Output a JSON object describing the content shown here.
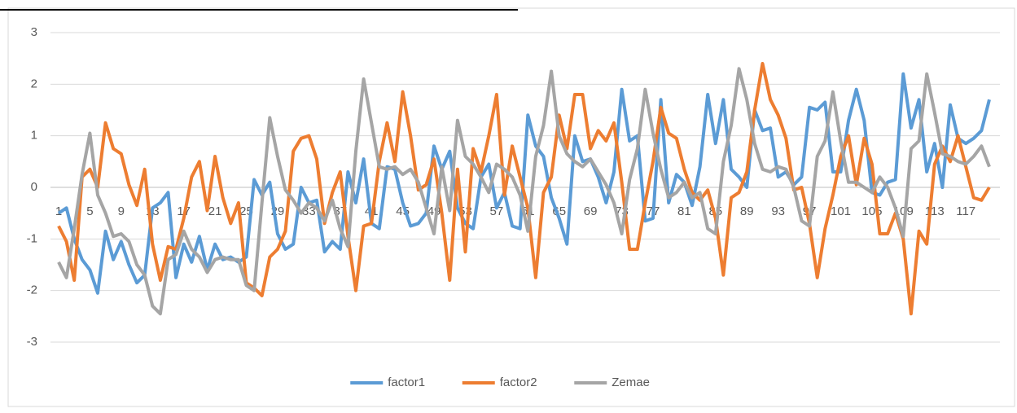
{
  "chart_data": {
    "type": "line",
    "categories": [
      "1",
      null,
      null,
      null,
      "5",
      null,
      null,
      null,
      "9",
      null,
      null,
      null,
      "13",
      null,
      null,
      null,
      "17",
      null,
      null,
      null,
      "21",
      null,
      null,
      null,
      "25",
      null,
      null,
      null,
      "29",
      null,
      null,
      null,
      "33",
      null,
      null,
      null,
      "37",
      null,
      null,
      null,
      "41",
      null,
      null,
      null,
      "45",
      null,
      null,
      null,
      "49",
      null,
      null,
      null,
      "53",
      null,
      null,
      null,
      "57",
      null,
      null,
      null,
      "61",
      null,
      null,
      null,
      "65",
      null,
      null,
      null,
      "69",
      null,
      null,
      null,
      "73",
      null,
      null,
      null,
      "77",
      null,
      null,
      null,
      "81",
      null,
      null,
      null,
      "85",
      null,
      null,
      null,
      "89",
      null,
      null,
      null,
      "93",
      null,
      null,
      null,
      "97",
      null,
      null,
      null,
      "101",
      null,
      null,
      null,
      "105",
      null,
      null,
      null,
      "109",
      null,
      null,
      null,
      "113",
      null,
      null,
      null,
      "117",
      null,
      null,
      null
    ],
    "series": [
      {
        "name": "factor1",
        "color": "#5b9bd5",
        "values": [
          -0.5,
          -0.4,
          -1.0,
          -1.4,
          -1.6,
          -2.05,
          -0.85,
          -1.4,
          -1.05,
          -1.5,
          -1.85,
          -1.7,
          -0.4,
          -0.3,
          -0.1,
          -1.75,
          -1.1,
          -1.45,
          -0.95,
          -1.6,
          -1.1,
          -1.4,
          -1.35,
          -1.45,
          -1.35,
          0.15,
          -0.15,
          0.1,
          -0.9,
          -1.2,
          -1.1,
          0.0,
          -0.3,
          -0.25,
          -1.25,
          -1.05,
          -1.2,
          0.3,
          -0.3,
          0.55,
          -0.7,
          -0.8,
          0.4,
          0.35,
          -0.3,
          -0.75,
          -0.7,
          -0.5,
          0.8,
          0.35,
          0.7,
          -0.4,
          -0.7,
          -0.8,
          0.2,
          0.45,
          -0.4,
          -0.1,
          -0.75,
          -0.8,
          1.4,
          0.8,
          0.6,
          -0.2,
          -0.6,
          -1.1,
          1.0,
          0.5,
          0.55,
          0.2,
          -0.3,
          0.3,
          1.9,
          0.9,
          1.0,
          -0.65,
          -0.6,
          1.7,
          -0.3,
          0.25,
          0.1,
          -0.35,
          0.4,
          1.8,
          0.85,
          1.7,
          0.35,
          0.2,
          0.0,
          1.5,
          1.1,
          1.15,
          0.2,
          0.3,
          0.05,
          0.2,
          1.55,
          1.5,
          1.65,
          0.3,
          0.3,
          1.3,
          1.9,
          1.3,
          -0.1,
          -0.15,
          0.1,
          0.15,
          2.2,
          1.15,
          1.7,
          0.3,
          0.85,
          0.0,
          1.6,
          0.95,
          0.85,
          0.95,
          1.1,
          1.7
        ]
      },
      {
        "name": "factor2",
        "color": "#ed7d31",
        "values": [
          -0.75,
          -1.05,
          -1.8,
          0.2,
          0.35,
          0.0,
          1.25,
          0.75,
          0.65,
          0.05,
          -0.35,
          0.35,
          -1.1,
          -1.8,
          -1.15,
          -1.2,
          -0.6,
          0.2,
          0.5,
          -0.45,
          0.6,
          -0.2,
          -0.7,
          -0.3,
          -1.85,
          -1.95,
          -2.1,
          -1.35,
          -1.2,
          -0.85,
          0.7,
          0.95,
          1.0,
          0.55,
          -0.7,
          -0.1,
          0.3,
          -0.95,
          -2.0,
          -0.75,
          -0.7,
          0.5,
          1.25,
          0.5,
          1.85,
          1.0,
          -0.05,
          0.05,
          0.55,
          -0.5,
          -1.8,
          0.35,
          -1.25,
          0.75,
          0.3,
          1.0,
          1.8,
          -0.15,
          0.8,
          0.2,
          -0.4,
          -1.75,
          -0.1,
          0.2,
          1.4,
          0.75,
          1.8,
          1.8,
          0.75,
          1.1,
          0.9,
          1.25,
          0.1,
          -1.2,
          -1.2,
          -0.3,
          0.5,
          1.55,
          1.05,
          0.95,
          0.35,
          -0.1,
          -0.25,
          -0.05,
          -0.6,
          -1.7,
          -0.2,
          -0.1,
          0.3,
          1.5,
          2.4,
          1.7,
          1.4,
          0.95,
          -0.05,
          0.0,
          -0.7,
          -1.75,
          -0.8,
          -0.15,
          0.6,
          1.0,
          0.05,
          0.95,
          0.45,
          -0.9,
          -0.9,
          -0.5,
          -1.0,
          -2.45,
          -0.85,
          -1.1,
          0.45,
          0.8,
          0.5,
          1.0,
          0.4,
          -0.2,
          -0.25,
          0.0
        ]
      },
      {
        "name": "Zemae",
        "color": "#a5a5a5",
        "values": [
          -1.45,
          -1.75,
          -0.8,
          0.25,
          1.05,
          -0.15,
          -0.5,
          -0.95,
          -0.9,
          -1.05,
          -1.5,
          -1.7,
          -2.3,
          -2.45,
          -1.4,
          -1.3,
          -0.85,
          -1.2,
          -1.35,
          -1.65,
          -1.4,
          -1.35,
          -1.4,
          -1.4,
          -1.9,
          -2.0,
          -0.3,
          1.35,
          0.6,
          -0.05,
          -0.25,
          -0.5,
          -0.3,
          -0.4,
          -0.65,
          -0.25,
          -0.8,
          -1.15,
          0.7,
          2.1,
          1.25,
          0.4,
          0.35,
          0.4,
          0.25,
          0.35,
          0.1,
          -0.4,
          -0.9,
          0.4,
          -0.45,
          1.3,
          0.6,
          0.45,
          0.2,
          -0.1,
          0.45,
          0.35,
          0.2,
          -0.15,
          -0.85,
          0.6,
          1.2,
          2.25,
          1.0,
          0.65,
          0.5,
          0.4,
          0.55,
          0.3,
          0.05,
          -0.3,
          -0.9,
          0.15,
          0.75,
          1.9,
          1.05,
          0.35,
          -0.2,
          -0.1,
          0.1,
          -0.2,
          -0.1,
          -0.8,
          -0.9,
          0.5,
          1.2,
          2.3,
          1.7,
          0.85,
          0.35,
          0.3,
          0.4,
          0.35,
          0.0,
          -0.65,
          -0.75,
          0.6,
          0.9,
          1.85,
          0.9,
          0.1,
          0.1,
          0.0,
          -0.1,
          0.2,
          0.0,
          -0.4,
          -0.95,
          0.75,
          0.9,
          2.2,
          1.45,
          0.65,
          0.6,
          0.5,
          0.45,
          0.6,
          0.8,
          0.4
        ]
      }
    ],
    "ylim": [
      -3,
      3
    ],
    "yticks": [
      -3,
      -2,
      -1,
      0,
      1,
      2,
      3
    ],
    "grid": true,
    "legend": "bottom"
  }
}
